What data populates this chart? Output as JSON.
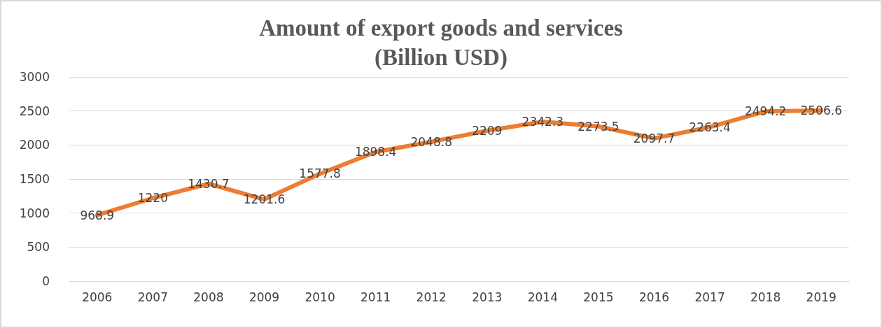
{
  "chart_data": {
    "type": "line",
    "title": "Amount of export goods and services\n(Billion USD)",
    "categories": [
      "2006",
      "2007",
      "2008",
      "2009",
      "2010",
      "2011",
      "2012",
      "2013",
      "2014",
      "2015",
      "2016",
      "2017",
      "2018",
      "2019"
    ],
    "series": [
      {
        "color": "#ed7d31",
        "values": [
          968.9,
          1220,
          1430.7,
          1201.6,
          1577.8,
          1898.4,
          2048.8,
          2209,
          2342.3,
          2273.5,
          2097.7,
          2263.4,
          2494.2,
          2506.6
        ]
      }
    ],
    "ylim": [
      0,
      3000
    ],
    "yticks": [
      0,
      500,
      1000,
      1500,
      2000,
      2500,
      3000
    ],
    "grid": "y",
    "data_labels": true,
    "marker": "none",
    "line_style": "solid"
  }
}
